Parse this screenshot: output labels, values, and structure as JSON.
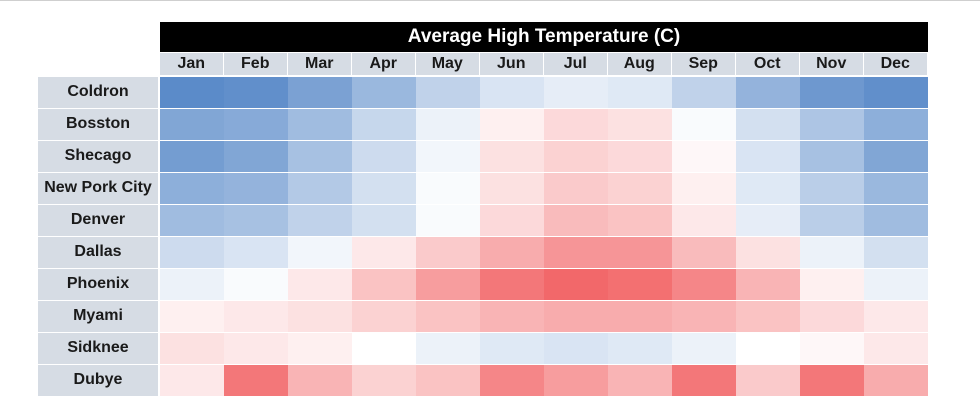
{
  "chart_data": {
    "type": "heatmap",
    "title": "Average High Temperature (C)",
    "columns": [
      "Jan",
      "Feb",
      "Mar",
      "Apr",
      "May",
      "Jun",
      "Jul",
      "Aug",
      "Sep",
      "Oct",
      "Nov",
      "Dec"
    ],
    "rows": [
      "Coldron",
      "Bosston",
      "Shecago",
      "New Pork City",
      "Denver",
      "Dallas",
      "Phoenix",
      "Myami",
      "Sidknee",
      "Dubye"
    ],
    "values": [
      [
        -4,
        -3,
        1,
        6,
        12,
        16,
        18,
        17,
        12,
        5,
        -1,
        -3
      ],
      [
        2,
        3,
        7,
        13,
        19,
        24,
        27,
        26,
        21,
        15,
        9,
        4
      ],
      [
        0,
        2,
        8,
        14,
        20,
        26,
        28,
        27,
        23,
        16,
        8,
        2
      ],
      [
        4,
        5,
        10,
        15,
        21,
        26,
        29,
        28,
        24,
        17,
        11,
        6
      ],
      [
        7,
        8,
        12,
        15,
        21,
        27,
        31,
        30,
        25,
        18,
        11,
        7
      ],
      [
        14,
        16,
        20,
        25,
        29,
        33,
        36,
        36,
        31,
        26,
        19,
        15
      ],
      [
        19,
        21,
        25,
        30,
        35,
        40,
        42,
        41,
        38,
        32,
        24,
        19
      ],
      [
        24,
        25,
        26,
        28,
        30,
        32,
        33,
        33,
        32,
        30,
        27,
        25
      ],
      [
        26,
        25,
        24,
        22,
        19,
        17,
        16,
        17,
        19,
        22,
        23,
        25
      ],
      [
        25,
        40,
        32,
        28,
        30,
        38,
        35,
        32,
        40,
        29,
        40,
        33
      ]
    ],
    "color_scale": {
      "low": "#5b8bc9",
      "mid": "#ffffff",
      "high": "#f2686a",
      "min": -4,
      "mid_value": 22,
      "max": 42
    },
    "label_colors": {
      "header_bg": "#d6dce4",
      "title_bg": "#000000",
      "title_text": "#ffffff"
    }
  }
}
